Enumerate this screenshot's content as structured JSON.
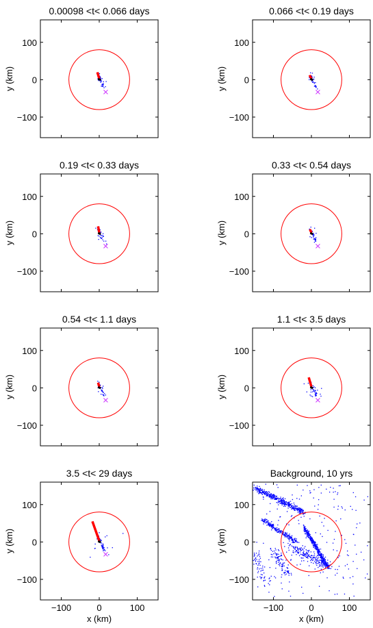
{
  "colors": {
    "events": "#0000ff",
    "circle": "#ff0000",
    "rupture": "#ff0000",
    "mainshock": "#000000",
    "marker": "#cc33ff"
  },
  "chart_data": [
    {
      "type": "scatter",
      "title": "0.00098 <t< 0.066 days",
      "xlabel": "",
      "ylabel": "y (km)",
      "xlim": [
        -155,
        155
      ],
      "ylim": [
        -155,
        160
      ],
      "xticks": [],
      "yticks": [
        100,
        0,
        -100
      ],
      "circle": {
        "cx": 0,
        "cy": 0,
        "r": 80
      },
      "rupture": [
        [
          -5,
          20
        ],
        [
          0,
          3
        ]
      ],
      "mainshock": [
        [
          -3,
          2
        ],
        [
          4,
          -1
        ]
      ],
      "marker": [
        17,
        -33
      ],
      "n_points": 35,
      "spread": 8
    },
    {
      "type": "scatter",
      "title": "0.066 <t< 0.19 days",
      "xlabel": "",
      "ylabel": "y (km)",
      "xlim": [
        -155,
        155
      ],
      "ylim": [
        -155,
        160
      ],
      "xticks": [],
      "yticks": [
        100,
        0,
        -100
      ],
      "circle": {
        "cx": 0,
        "cy": 0,
        "r": 80
      },
      "rupture": [
        [
          -5,
          12
        ],
        [
          0,
          3
        ]
      ],
      "mainshock": [
        [
          -3,
          2
        ],
        [
          4,
          -1
        ]
      ],
      "marker": [
        17,
        -33
      ],
      "n_points": 30,
      "spread": 8
    },
    {
      "type": "scatter",
      "title": "0.19 <t< 0.33 days",
      "xlabel": "",
      "ylabel": "y (km)",
      "xlim": [
        -155,
        155
      ],
      "ylim": [
        -155,
        160
      ],
      "xticks": [],
      "yticks": [
        100,
        0,
        -100
      ],
      "circle": {
        "cx": 0,
        "cy": 0,
        "r": 80
      },
      "rupture": [
        [
          -3,
          20
        ],
        [
          0,
          3
        ]
      ],
      "mainshock": [
        [
          -3,
          2
        ],
        [
          4,
          -1
        ]
      ],
      "marker": [
        17,
        -33
      ],
      "n_points": 30,
      "spread": 8
    },
    {
      "type": "scatter",
      "title": "0.33 <t< 0.54 days",
      "xlabel": "",
      "ylabel": "y (km)",
      "xlim": [
        -155,
        155
      ],
      "ylim": [
        -155,
        160
      ],
      "xticks": [],
      "yticks": [
        100,
        0,
        -100
      ],
      "circle": {
        "cx": 0,
        "cy": 0,
        "r": 80
      },
      "rupture": [
        [
          -4,
          12
        ],
        [
          0,
          3
        ]
      ],
      "mainshock": [
        [
          -3,
          2
        ],
        [
          4,
          -1
        ]
      ],
      "marker": [
        17,
        -33
      ],
      "n_points": 35,
      "spread": 10
    },
    {
      "type": "scatter",
      "title": "0.54 <t< 1.1 days",
      "xlabel": "",
      "ylabel": "y (km)",
      "xlim": [
        -155,
        155
      ],
      "ylim": [
        -155,
        160
      ],
      "xticks": [],
      "yticks": [
        100,
        0,
        -100
      ],
      "circle": {
        "cx": 0,
        "cy": 0,
        "r": 80
      },
      "rupture": [
        [
          -3,
          14
        ],
        [
          0,
          3
        ]
      ],
      "mainshock": [
        [
          -3,
          2
        ],
        [
          4,
          -1
        ]
      ],
      "marker": [
        17,
        -33
      ],
      "n_points": 30,
      "spread": 10
    },
    {
      "type": "scatter",
      "title": "1.1 <t< 3.5 days",
      "xlabel": "",
      "ylabel": "y (km)",
      "xlim": [
        -155,
        155
      ],
      "ylim": [
        -155,
        160
      ],
      "xticks": [],
      "yticks": [
        100,
        0,
        -100
      ],
      "circle": {
        "cx": 0,
        "cy": 0,
        "r": 80
      },
      "rupture": [
        [
          -7,
          28
        ],
        [
          0,
          3
        ]
      ],
      "mainshock": [
        [
          -3,
          2
        ],
        [
          4,
          -1
        ]
      ],
      "marker": [
        17,
        -33
      ],
      "n_points": 45,
      "spread": 14
    },
    {
      "type": "scatter",
      "title": "3.5 <t< 29 days",
      "xlabel": "x (km)",
      "ylabel": "y (km)",
      "xlim": [
        -155,
        155
      ],
      "ylim": [
        -155,
        160
      ],
      "xticks": [
        -100,
        0,
        100
      ],
      "yticks": [
        100,
        0,
        -100
      ],
      "circle": {
        "cx": 0,
        "cy": 0,
        "r": 80
      },
      "rupture": [
        [
          -18,
          55
        ],
        [
          0,
          3
        ]
      ],
      "mainshock": [
        [
          -3,
          2
        ],
        [
          4,
          -1
        ]
      ],
      "marker": [
        17,
        -33
      ],
      "n_points": 55,
      "spread": 40
    },
    {
      "type": "scatter",
      "title": "Background, 10 yrs",
      "xlabel": "x (km)",
      "ylabel": "y (km)",
      "xlim": [
        -155,
        155
      ],
      "ylim": [
        -155,
        160
      ],
      "xticks": [
        -100,
        0,
        100
      ],
      "yticks": [
        100,
        0,
        -100
      ],
      "circle": {
        "cx": 0,
        "cy": 0,
        "r": 80
      },
      "rupture": null,
      "mainshock": null,
      "marker": null,
      "n_points": 1500,
      "spread": 0
    }
  ]
}
